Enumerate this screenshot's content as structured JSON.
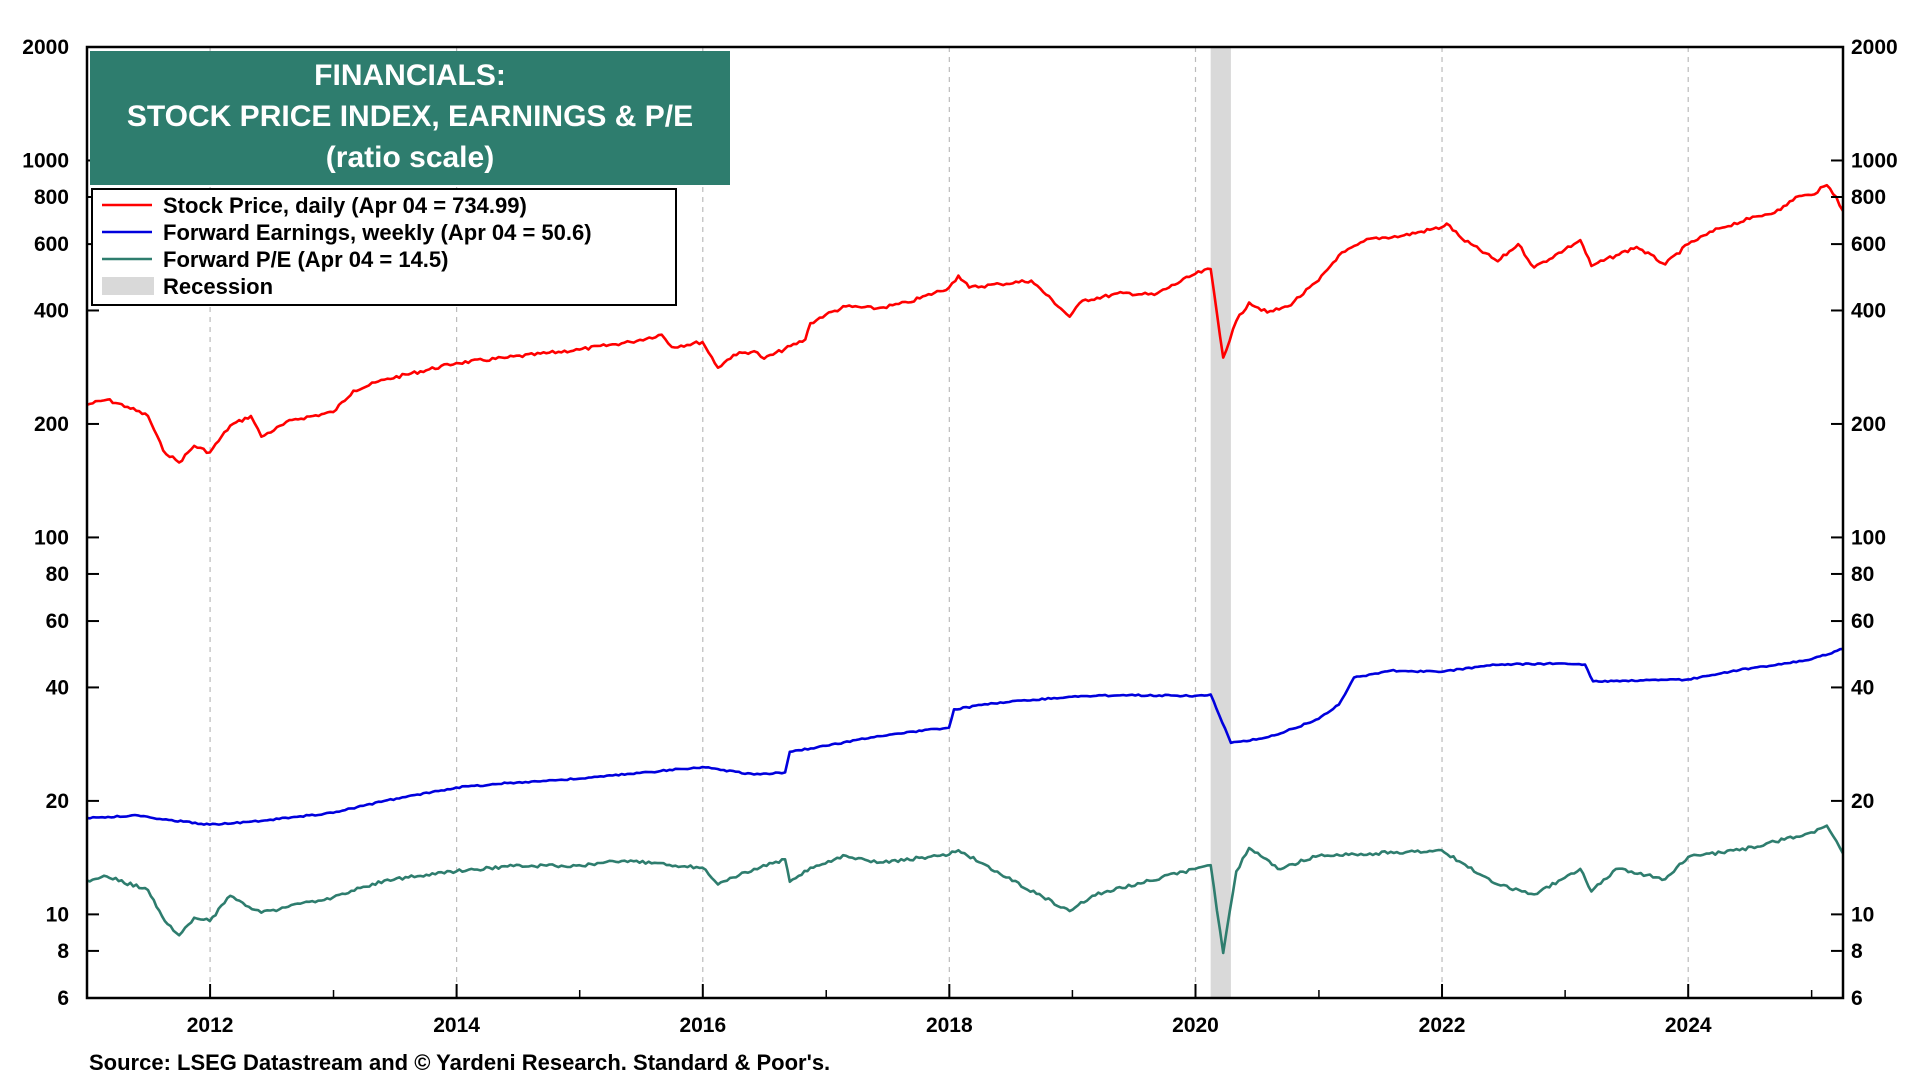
{
  "chart_data": {
    "type": "line",
    "title": [
      "FINANCIALS:",
      "STOCK PRICE INDEX, EARNINGS & P/E",
      "(ratio scale)"
    ],
    "y_scale": "log",
    "ylim": [
      6,
      2000
    ],
    "xlim": [
      "2011-01-01",
      "2025-04-04"
    ],
    "y_ticks": [
      6,
      8,
      10,
      20,
      40,
      60,
      80,
      100,
      200,
      400,
      600,
      800,
      1000,
      2000
    ],
    "x_ticks": [
      "2012",
      "2014",
      "2016",
      "2018",
      "2020",
      "2022",
      "2024"
    ],
    "x_ticks_at": [
      "2012-01-01",
      "2014-01-01",
      "2016-01-01",
      "2018-01-01",
      "2020-01-01",
      "2022-01-01",
      "2024-01-01"
    ],
    "grid": "vertical dashed at year ticks",
    "legend_position": "top-left",
    "recession": {
      "label": "Recession",
      "start": "2020-02-15",
      "end": "2020-04-15",
      "color": "#d9d9d9"
    },
    "series": [
      {
        "name": "Stock Price, daily (Apr 04 = 734.99)",
        "color": "#ff0000",
        "points": [
          [
            "2011-01-01",
            225
          ],
          [
            "2011-03-01",
            232
          ],
          [
            "2011-05-01",
            222
          ],
          [
            "2011-07-01",
            210
          ],
          [
            "2011-08-15",
            170
          ],
          [
            "2011-10-01",
            158
          ],
          [
            "2011-11-15",
            175
          ],
          [
            "2011-12-31",
            168
          ],
          [
            "2012-03-01",
            198
          ],
          [
            "2012-05-01",
            210
          ],
          [
            "2012-06-01",
            185
          ],
          [
            "2012-09-01",
            205
          ],
          [
            "2012-12-31",
            215
          ],
          [
            "2013-03-01",
            245
          ],
          [
            "2013-06-01",
            262
          ],
          [
            "2013-12-31",
            290
          ],
          [
            "2014-06-01",
            300
          ],
          [
            "2014-12-31",
            315
          ],
          [
            "2015-06-01",
            330
          ],
          [
            "2015-09-01",
            345
          ],
          [
            "2015-10-01",
            320
          ],
          [
            "2015-12-31",
            330
          ],
          [
            "2016-02-15",
            282
          ],
          [
            "2016-04-01",
            305
          ],
          [
            "2016-06-01",
            312
          ],
          [
            "2016-07-01",
            298
          ],
          [
            "2016-10-31",
            335
          ],
          [
            "2016-11-15",
            370
          ],
          [
            "2016-12-31",
            390
          ],
          [
            "2017-03-01",
            410
          ],
          [
            "2017-06-01",
            405
          ],
          [
            "2017-09-01",
            420
          ],
          [
            "2017-12-31",
            460
          ],
          [
            "2018-01-28",
            495
          ],
          [
            "2018-03-01",
            460
          ],
          [
            "2018-06-01",
            470
          ],
          [
            "2018-09-01",
            480
          ],
          [
            "2018-12-24",
            385
          ],
          [
            "2019-01-31",
            425
          ],
          [
            "2019-06-01",
            445
          ],
          [
            "2019-09-01",
            440
          ],
          [
            "2019-12-31",
            500
          ],
          [
            "2020-02-15",
            515
          ],
          [
            "2020-03-23",
            300
          ],
          [
            "2020-05-01",
            375
          ],
          [
            "2020-06-08",
            420
          ],
          [
            "2020-08-01",
            395
          ],
          [
            "2020-10-01",
            410
          ],
          [
            "2020-12-31",
            480
          ],
          [
            "2021-03-01",
            560
          ],
          [
            "2021-06-01",
            620
          ],
          [
            "2021-09-01",
            630
          ],
          [
            "2021-12-31",
            665
          ],
          [
            "2022-01-15",
            680
          ],
          [
            "2022-03-01",
            620
          ],
          [
            "2022-06-15",
            540
          ],
          [
            "2022-08-15",
            600
          ],
          [
            "2022-10-01",
            520
          ],
          [
            "2022-12-31",
            580
          ],
          [
            "2023-02-15",
            615
          ],
          [
            "2023-03-20",
            525
          ],
          [
            "2023-06-01",
            560
          ],
          [
            "2023-08-01",
            590
          ],
          [
            "2023-10-25",
            530
          ],
          [
            "2024-01-01",
            600
          ],
          [
            "2024-04-01",
            660
          ],
          [
            "2024-07-01",
            700
          ],
          [
            "2024-10-01",
            740
          ],
          [
            "2024-11-15",
            800
          ],
          [
            "2024-12-31",
            810
          ],
          [
            "2025-02-15",
            860
          ],
          [
            "2025-03-15",
            800
          ],
          [
            "2025-04-04",
            734.99
          ]
        ]
      },
      {
        "name": "Forward Earnings, weekly (Apr 04 = 50.6)",
        "color": "#0000dd",
        "points": [
          [
            "2011-01-01",
            18.0
          ],
          [
            "2011-06-01",
            18.3
          ],
          [
            "2011-09-01",
            17.8
          ],
          [
            "2011-12-31",
            17.3
          ],
          [
            "2012-06-01",
            17.7
          ],
          [
            "2012-12-31",
            18.6
          ],
          [
            "2013-06-01",
            20.0
          ],
          [
            "2013-12-31",
            21.7
          ],
          [
            "2014-06-01",
            22.3
          ],
          [
            "2014-12-31",
            22.9
          ],
          [
            "2015-06-01",
            23.6
          ],
          [
            "2015-12-31",
            24.6
          ],
          [
            "2016-06-01",
            23.5
          ],
          [
            "2016-09-01",
            23.8
          ],
          [
            "2016-09-15",
            27.0
          ],
          [
            "2016-12-31",
            28.0
          ],
          [
            "2017-06-01",
            29.7
          ],
          [
            "2017-12-31",
            31.3
          ],
          [
            "2018-01-15",
            35.0
          ],
          [
            "2018-06-01",
            36.5
          ],
          [
            "2018-12-31",
            37.8
          ],
          [
            "2019-06-01",
            38.2
          ],
          [
            "2019-12-31",
            38.0
          ],
          [
            "2020-02-15",
            38.3
          ],
          [
            "2020-04-15",
            28.5
          ],
          [
            "2020-06-01",
            28.8
          ],
          [
            "2020-09-01",
            30.0
          ],
          [
            "2020-12-31",
            33.0
          ],
          [
            "2021-03-01",
            36.0
          ],
          [
            "2021-04-15",
            42.5
          ],
          [
            "2021-08-01",
            44.3
          ],
          [
            "2021-12-31",
            44.0
          ],
          [
            "2022-06-01",
            46.0
          ],
          [
            "2022-12-31",
            46.3
          ],
          [
            "2023-03-01",
            46.0
          ],
          [
            "2023-03-25",
            41.5
          ],
          [
            "2023-12-31",
            42.0
          ],
          [
            "2024-06-01",
            44.5
          ],
          [
            "2024-12-31",
            47.5
          ],
          [
            "2025-04-04",
            50.6
          ]
        ]
      },
      {
        "name": "Forward P/E (Apr 04 = 14.5)",
        "color": "#2e7d6e",
        "points": [
          [
            "2011-01-01",
            12.3
          ],
          [
            "2011-03-01",
            12.6
          ],
          [
            "2011-07-01",
            11.6
          ],
          [
            "2011-08-20",
            9.6
          ],
          [
            "2011-10-01",
            8.8
          ],
          [
            "2011-11-15",
            9.8
          ],
          [
            "2011-12-31",
            9.6
          ],
          [
            "2012-03-01",
            11.2
          ],
          [
            "2012-06-01",
            10.1
          ],
          [
            "2012-12-31",
            11.1
          ],
          [
            "2013-06-01",
            12.3
          ],
          [
            "2013-12-31",
            13.0
          ],
          [
            "2014-06-01",
            13.4
          ],
          [
            "2014-12-31",
            13.5
          ],
          [
            "2015-06-01",
            13.9
          ],
          [
            "2015-12-31",
            13.3
          ],
          [
            "2016-02-15",
            12.0
          ],
          [
            "2016-06-01",
            13.2
          ],
          [
            "2016-09-01",
            14.0
          ],
          [
            "2016-09-15",
            12.2
          ],
          [
            "2016-11-15",
            13.3
          ],
          [
            "2017-03-01",
            14.3
          ],
          [
            "2017-06-01",
            13.7
          ],
          [
            "2017-12-31",
            14.4
          ],
          [
            "2018-01-28",
            14.8
          ],
          [
            "2018-06-01",
            12.8
          ],
          [
            "2018-12-24",
            10.2
          ],
          [
            "2019-03-01",
            11.2
          ],
          [
            "2019-12-31",
            13.2
          ],
          [
            "2020-02-15",
            13.5
          ],
          [
            "2020-03-23",
            7.9
          ],
          [
            "2020-05-01",
            13.0
          ],
          [
            "2020-06-08",
            15.0
          ],
          [
            "2020-09-01",
            13.2
          ],
          [
            "2020-12-31",
            14.3
          ],
          [
            "2021-06-01",
            14.5
          ],
          [
            "2021-12-31",
            14.8
          ],
          [
            "2022-06-15",
            12.0
          ],
          [
            "2022-10-01",
            11.3
          ],
          [
            "2022-12-31",
            12.5
          ],
          [
            "2023-02-15",
            13.2
          ],
          [
            "2023-03-20",
            11.5
          ],
          [
            "2023-06-01",
            13.2
          ],
          [
            "2023-10-25",
            12.4
          ],
          [
            "2024-01-01",
            14.2
          ],
          [
            "2024-06-01",
            14.8
          ],
          [
            "2024-12-31",
            16.5
          ],
          [
            "2025-02-15",
            17.2
          ],
          [
            "2025-04-04",
            14.5
          ]
        ]
      }
    ],
    "source": "Source: LSEG Datastream and © Yardeni Research. Standard & Poor's."
  }
}
